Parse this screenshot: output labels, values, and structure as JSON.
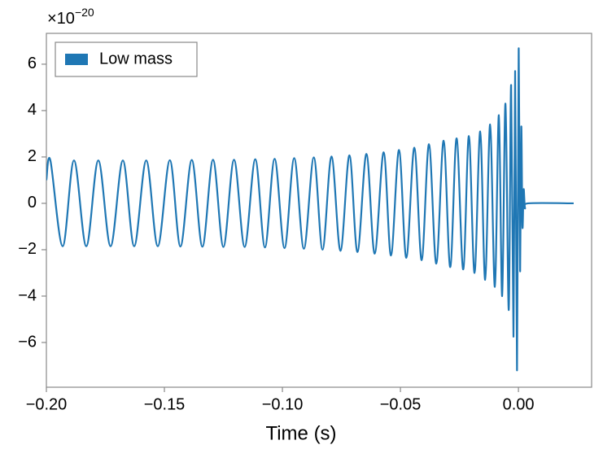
{
  "chart_data": {
    "type": "line",
    "xlabel": "Time (s)",
    "y_offset_text": {
      "base": "×10",
      "exponent": "−20"
    },
    "legend": "upper left",
    "xlim": [
      -0.2,
      0.031
    ],
    "ylim": [
      -7.93,
      7.33
    ],
    "xticks": [
      {
        "value": -0.2,
        "label": "−0.20"
      },
      {
        "value": -0.15,
        "label": "−0.15"
      },
      {
        "value": -0.1,
        "label": "−0.10"
      },
      {
        "value": -0.05,
        "label": "−0.05"
      },
      {
        "value": 0,
        "label": "0.00"
      }
    ],
    "yticks": [
      {
        "value": -6,
        "label": "−6"
      },
      {
        "value": -4,
        "label": "−4"
      },
      {
        "value": -2,
        "label": "−2"
      },
      0,
      2,
      4,
      6
    ],
    "x": [
      -0.2,
      -0.1983,
      -0.1931,
      -0.1883,
      -0.1831,
      -0.178,
      -0.1728,
      -0.1676,
      -0.1628,
      -0.1577,
      -0.1528,
      -0.1477,
      -0.1432,
      -0.1384,
      -0.1339,
      -0.1294,
      -0.125,
      -0.1205,
      -0.116,
      -0.1115,
      -0.1074,
      -0.1033,
      -0.0991,
      -0.095,
      -0.0909,
      -0.0867,
      -0.083,
      -0.0792,
      -0.0754,
      -0.0716,
      -0.0682,
      -0.0644,
      -0.0609,
      -0.0571,
      -0.054,
      -0.0506,
      -0.0475,
      -0.0441,
      -0.041,
      -0.0379,
      -0.0348,
      -0.0317,
      -0.0289,
      -0.0262,
      -0.0234,
      -0.021,
      -0.0186,
      -0.0162,
      -0.0141,
      -0.012,
      -0.01,
      -0.0083,
      -0.0069,
      -0.0055,
      -0.0041,
      -0.0031,
      -0.0021,
      -0.0014,
      -0.0006,
      0.0001,
      0.0007,
      0.0012,
      0.0017,
      0.0022,
      0.0028,
      0.0041,
      0.0234
    ],
    "series": [
      {
        "name": "Low mass",
        "color": "#1f77b4",
        "values": [
          1.0,
          1.85,
          -1.85,
          1.85,
          -1.85,
          1.85,
          -1.85,
          1.85,
          -1.85,
          1.85,
          -1.85,
          1.86,
          -1.86,
          1.87,
          -1.87,
          1.88,
          -1.88,
          1.88,
          -1.88,
          1.9,
          -1.9,
          1.92,
          -1.93,
          1.95,
          -1.96,
          1.98,
          -2.0,
          2.02,
          -2.05,
          2.07,
          -2.1,
          2.13,
          -2.17,
          2.2,
          -2.25,
          2.3,
          -2.35,
          2.4,
          -2.45,
          2.55,
          -2.6,
          2.7,
          -2.75,
          2.8,
          -2.85,
          2.9,
          -3.0,
          3.1,
          -3.3,
          3.4,
          -3.6,
          3.8,
          -4.0,
          4.3,
          -4.6,
          5.1,
          -5.75,
          5.7,
          -7.2,
          6.65,
          -2.9,
          3.3,
          -1.0,
          0.6,
          -0.2,
          0,
          0
        ]
      }
    ]
  }
}
